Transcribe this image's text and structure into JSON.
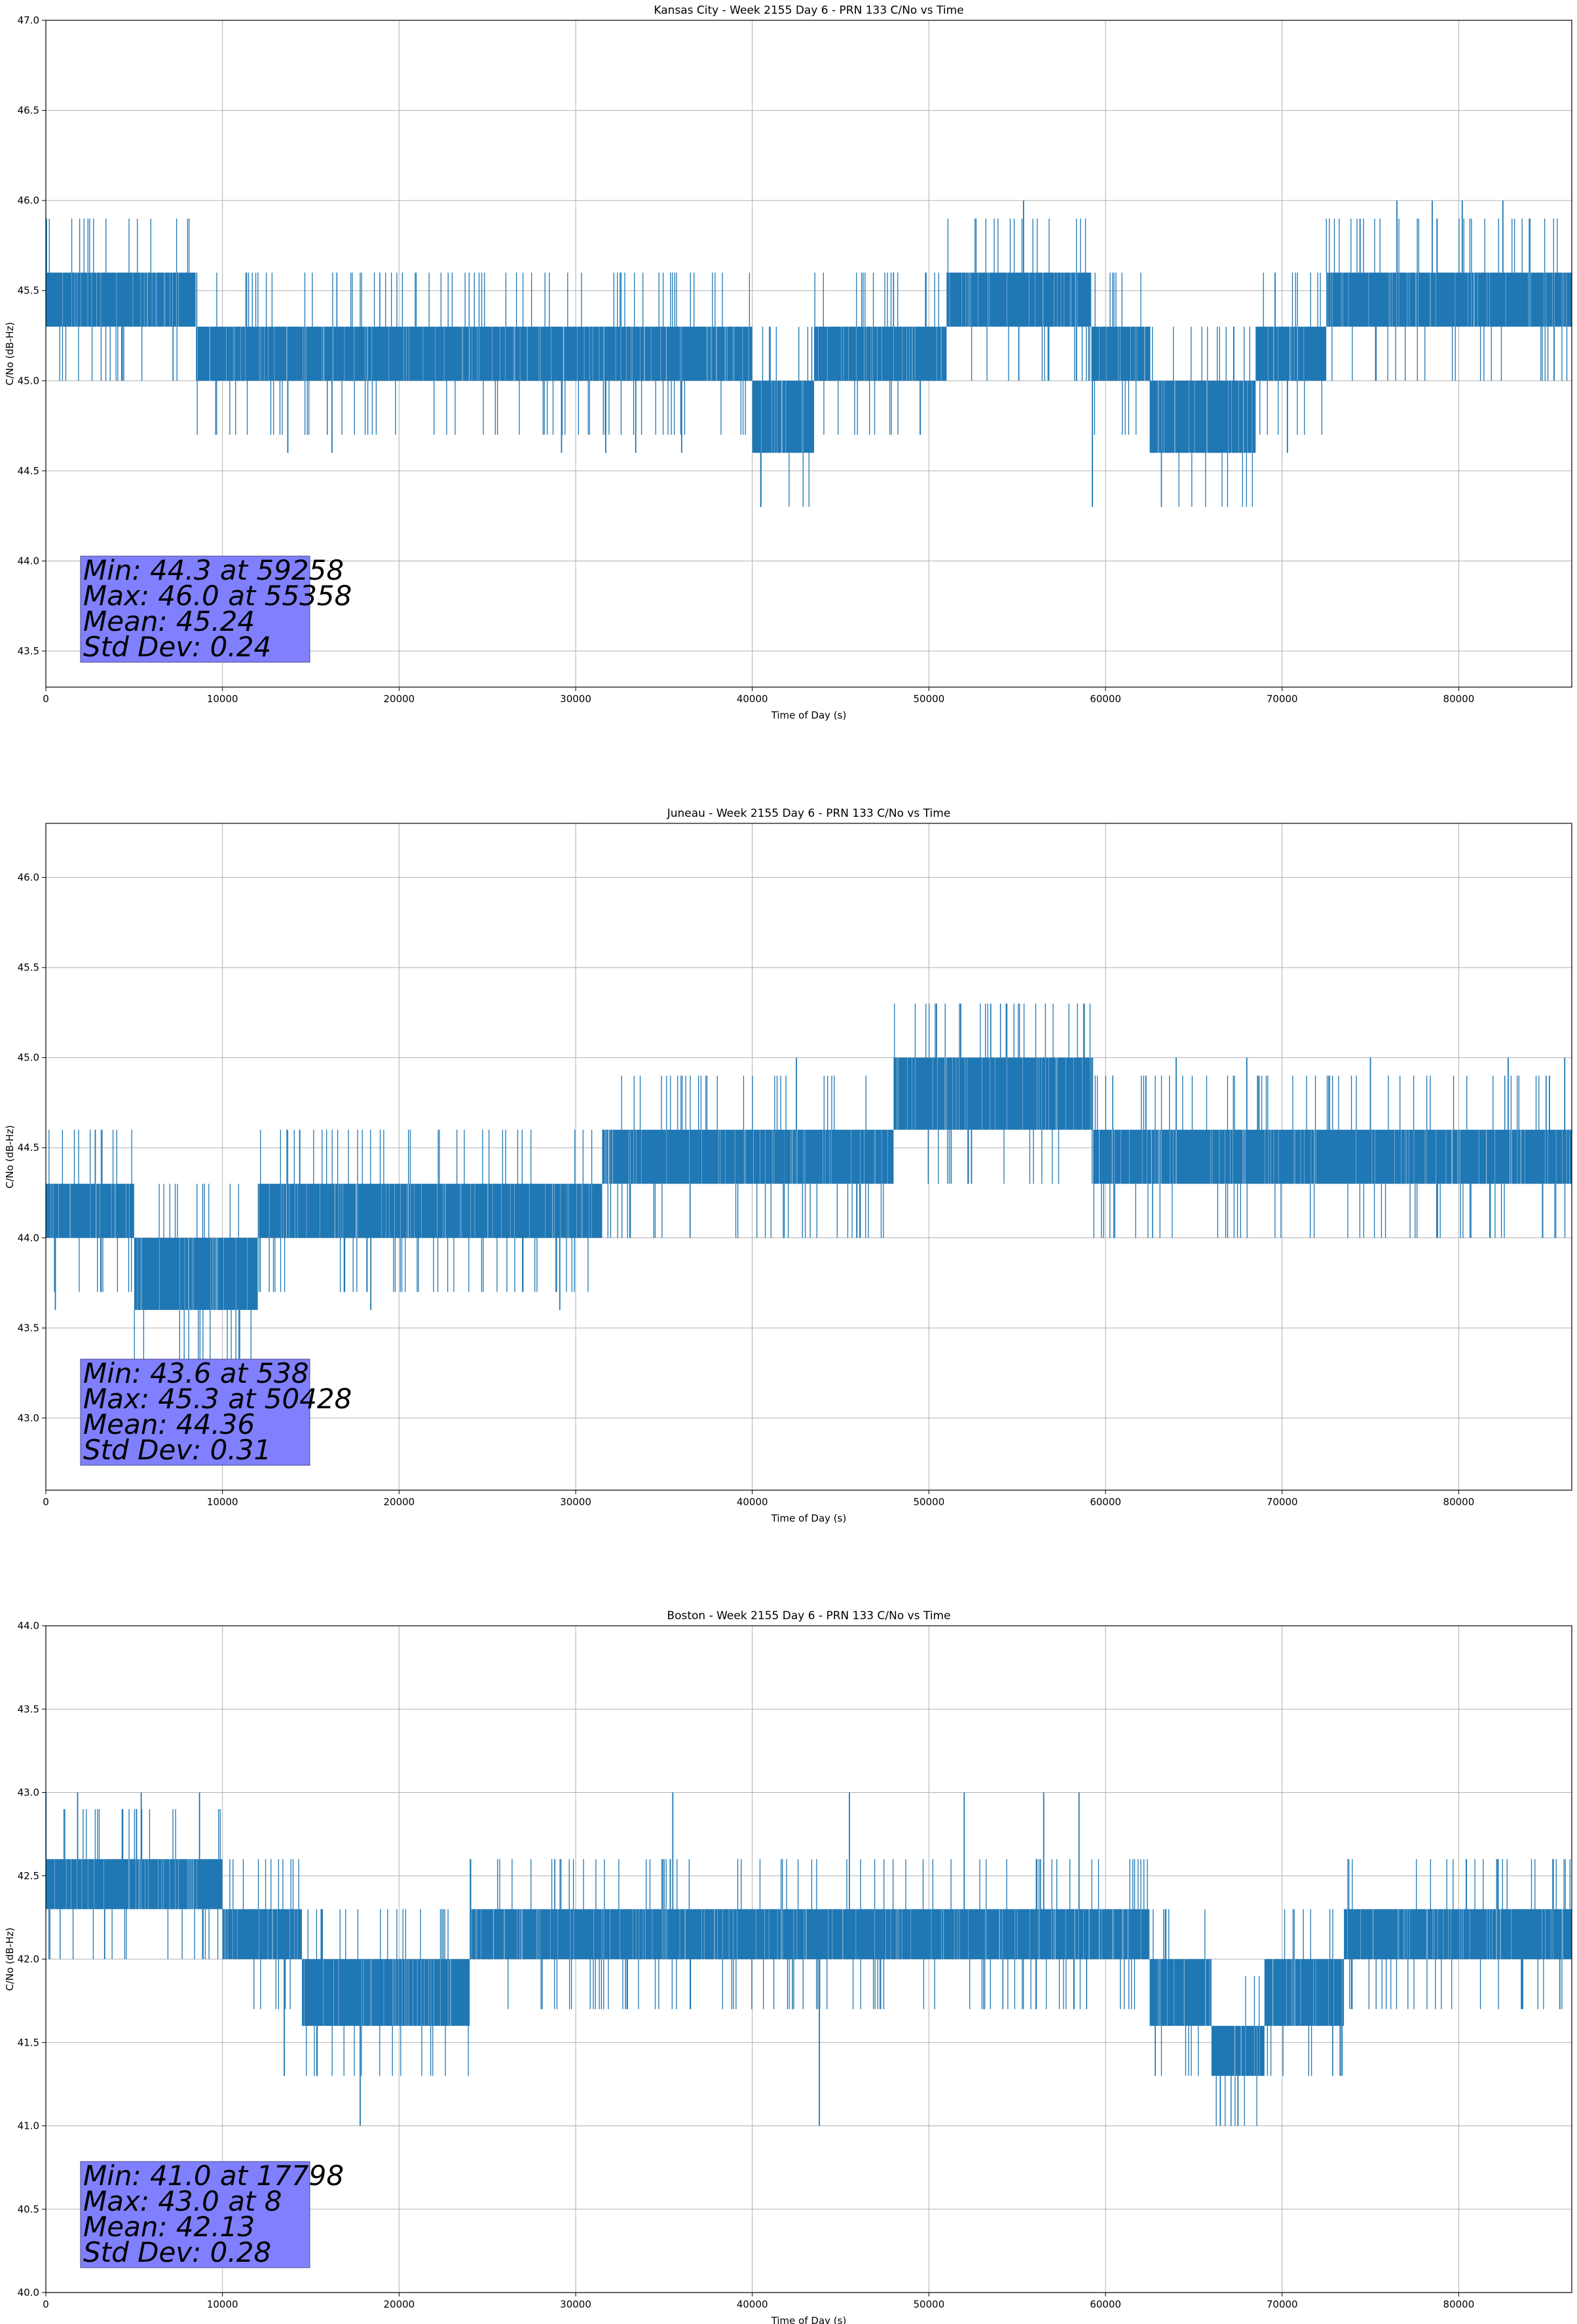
{
  "chart_data": [
    {
      "type": "line",
      "title": "Kansas City - Week 2155 Day 6 - PRN 133 C/No vs Time",
      "xlabel": "Time of Day (s)",
      "ylabel": "C/No (dB-Hz)",
      "xlim": [
        0,
        86400
      ],
      "ylim": [
        43.3,
        47.0
      ],
      "xticks": [
        0,
        10000,
        20000,
        30000,
        40000,
        50000,
        60000,
        70000,
        80000
      ],
      "yticks": [
        43.5,
        44.0,
        44.5,
        45.0,
        45.5,
        46.0,
        46.5,
        47.0
      ],
      "grid": true,
      "line_color": "#1f77b4",
      "band_segments": [
        {
          "x": [
            0,
            8500
          ],
          "low": 45.3,
          "high": 45.6
        },
        {
          "x": [
            8500,
            17500
          ],
          "low": 45.0,
          "high": 45.3
        },
        {
          "x": [
            17500,
            40000
          ],
          "low": 45.0,
          "high": 45.3
        },
        {
          "x": [
            40000,
            43500
          ],
          "low": 44.6,
          "high": 45.0
        },
        {
          "x": [
            43500,
            51000
          ],
          "low": 45.0,
          "high": 45.3
        },
        {
          "x": [
            51000,
            59200
          ],
          "low": 45.3,
          "high": 45.6
        },
        {
          "x": [
            59200,
            62500
          ],
          "low": 45.0,
          "high": 45.3
        },
        {
          "x": [
            62500,
            68500
          ],
          "low": 44.6,
          "high": 45.0
        },
        {
          "x": [
            68500,
            72500
          ],
          "low": 45.0,
          "high": 45.3
        },
        {
          "x": [
            72500,
            79500
          ],
          "low": 45.3,
          "high": 45.6
        },
        {
          "x": [
            79500,
            86400
          ],
          "low": 45.3,
          "high": 45.6
        }
      ],
      "spikes": [
        {
          "x": 13700,
          "y": 44.6
        },
        {
          "x": 16200,
          "y": 44.6
        },
        {
          "x": 29200,
          "y": 44.6
        },
        {
          "x": 31700,
          "y": 44.6
        },
        {
          "x": 33400,
          "y": 44.6
        },
        {
          "x": 36000,
          "y": 44.6
        },
        {
          "x": 55358,
          "y": 46.0
        },
        {
          "x": 59258,
          "y": 44.3
        },
        {
          "x": 66500,
          "y": 44.6
        },
        {
          "x": 70300,
          "y": 44.6
        },
        {
          "x": 76500,
          "y": 46.0
        },
        {
          "x": 78500,
          "y": 46.0
        },
        {
          "x": 80200,
          "y": 46.0
        },
        {
          "x": 82500,
          "y": 46.0
        },
        {
          "x": 85400,
          "y": 45.0
        }
      ],
      "stats": {
        "min": "Min: 44.3 at 59258",
        "max": "Max: 46.0 at 55358",
        "mean": "Mean: 45.24",
        "std": "Std Dev: 0.24"
      }
    },
    {
      "type": "line",
      "title": "Juneau - Week 2155 Day 6 - PRN 133 C/No vs Time",
      "xlabel": "Time of Day (s)",
      "ylabel": "C/No (dB-Hz)",
      "xlim": [
        0,
        86400
      ],
      "ylim": [
        42.6,
        46.3
      ],
      "xticks": [
        0,
        10000,
        20000,
        30000,
        40000,
        50000,
        60000,
        70000,
        80000
      ],
      "yticks": [
        43.0,
        43.5,
        44.0,
        44.5,
        45.0,
        45.5,
        46.0
      ],
      "grid": true,
      "line_color": "#1f77b4",
      "band_segments": [
        {
          "x": [
            0,
            5000
          ],
          "low": 44.0,
          "high": 44.3
        },
        {
          "x": [
            5000,
            12000
          ],
          "low": 43.6,
          "high": 44.0
        },
        {
          "x": [
            12000,
            31500
          ],
          "low": 44.0,
          "high": 44.3
        },
        {
          "x": [
            31500,
            41800
          ],
          "low": 44.3,
          "high": 44.6
        },
        {
          "x": [
            41800,
            48000
          ],
          "low": 44.3,
          "high": 44.6
        },
        {
          "x": [
            48000,
            59300
          ],
          "low": 44.6,
          "high": 45.0
        },
        {
          "x": [
            59300,
            86400
          ],
          "low": 44.3,
          "high": 44.6
        }
      ],
      "spikes": [
        {
          "x": 538,
          "y": 43.6
        },
        {
          "x": 2800,
          "y": 44.6
        },
        {
          "x": 18400,
          "y": 43.6
        },
        {
          "x": 29100,
          "y": 43.6
        },
        {
          "x": 42500,
          "y": 45.0
        },
        {
          "x": 50428,
          "y": 45.3
        },
        {
          "x": 51800,
          "y": 45.3
        },
        {
          "x": 53500,
          "y": 45.3
        },
        {
          "x": 64000,
          "y": 45.0
        },
        {
          "x": 68000,
          "y": 45.0
        },
        {
          "x": 75000,
          "y": 45.0
        },
        {
          "x": 82800,
          "y": 45.0
        },
        {
          "x": 86000,
          "y": 45.0
        }
      ],
      "stats": {
        "min": "Min: 43.6 at 538",
        "max": "Max: 45.3 at 50428",
        "mean": "Mean: 44.36",
        "std": "Std Dev: 0.31"
      }
    },
    {
      "type": "line",
      "title": "Boston - Week 2155 Day 6 - PRN 133 C/No vs Time",
      "xlabel": "Time of Day (s)",
      "ylabel": "C/No (dB-Hz)",
      "xlim": [
        0,
        86400
      ],
      "ylim": [
        40.0,
        44.0
      ],
      "xticks": [
        0,
        10000,
        20000,
        30000,
        40000,
        50000,
        60000,
        70000,
        80000
      ],
      "yticks": [
        40.0,
        40.5,
        41.0,
        41.5,
        42.0,
        42.5,
        43.0,
        43.5,
        44.0
      ],
      "grid": true,
      "line_color": "#1f77b4",
      "band_segments": [
        {
          "x": [
            0,
            10000
          ],
          "low": 42.3,
          "high": 42.6
        },
        {
          "x": [
            10000,
            14500
          ],
          "low": 42.0,
          "high": 42.3
        },
        {
          "x": [
            14500,
            24000
          ],
          "low": 41.6,
          "high": 42.0
        },
        {
          "x": [
            24000,
            31500
          ],
          "low": 42.0,
          "high": 42.3
        },
        {
          "x": [
            31500,
            62500
          ],
          "low": 42.0,
          "high": 42.3
        },
        {
          "x": [
            62500,
            66000
          ],
          "low": 41.6,
          "high": 42.0
        },
        {
          "x": [
            66000,
            69000
          ],
          "low": 41.3,
          "high": 41.6
        },
        {
          "x": [
            69000,
            73500
          ],
          "low": 41.6,
          "high": 42.0
        },
        {
          "x": [
            73500,
            86400
          ],
          "low": 42.0,
          "high": 42.3
        }
      ],
      "spikes": [
        {
          "x": 8,
          "y": 43.0
        },
        {
          "x": 1800,
          "y": 43.0
        },
        {
          "x": 5400,
          "y": 43.0
        },
        {
          "x": 8700,
          "y": 43.0
        },
        {
          "x": 13500,
          "y": 41.3
        },
        {
          "x": 17798,
          "y": 41.0
        },
        {
          "x": 35500,
          "y": 43.0
        },
        {
          "x": 43800,
          "y": 41.0
        },
        {
          "x": 45500,
          "y": 43.0
        },
        {
          "x": 52000,
          "y": 43.0
        },
        {
          "x": 56500,
          "y": 43.0
        },
        {
          "x": 58500,
          "y": 43.0
        },
        {
          "x": 66500,
          "y": 41.0
        },
        {
          "x": 67500,
          "y": 41.0
        }
      ],
      "stats": {
        "min": "Min: 41.0 at 17798",
        "max": "Max: 43.0 at 8",
        "mean": "Mean: 42.13",
        "std": "Std Dev: 0.28"
      }
    }
  ]
}
